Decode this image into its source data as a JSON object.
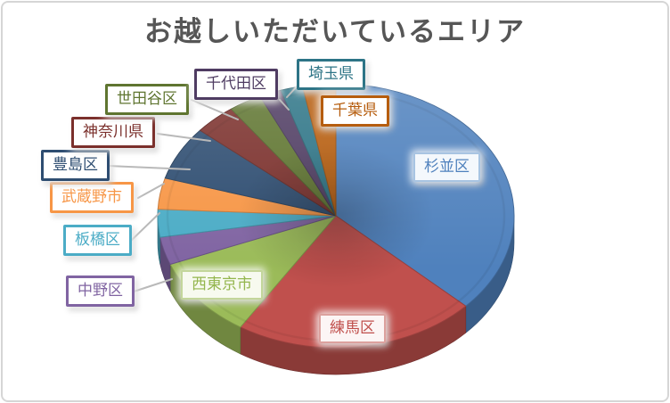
{
  "frame": {
    "background": "#FFFFFF",
    "border_color": "#D6D6D6"
  },
  "chart": {
    "title": "お越しいただいているエリア",
    "title_color": "#565656"
  },
  "chart_data": {
    "type": "pie",
    "projection": "3d",
    "start_angle_deg": 0,
    "direction": "clockwise",
    "title": "お越しいただいているエリア",
    "legend_position": "none",
    "values_are": "percent (estimated from slice angles; no numeric labels shown in image)",
    "leader_line_color": "#B9B9B9",
    "points": [
      {
        "label": "杉並区",
        "value_pct": 37,
        "color": "#4F81BD",
        "callout": {
          "text_color": "#4F81BD",
          "border_color": "#A8C4E2",
          "bg": "#F4F8FC",
          "attached_to_slice": true
        }
      },
      {
        "label": "練馬区",
        "value_pct": 22,
        "color": "#C0504D",
        "callout": {
          "text_color": "#C0504D",
          "border_color": "#DCA19E",
          "bg": "#FCF5F5",
          "attached_to_slice": true
        }
      },
      {
        "label": "西東京市",
        "value_pct": 10,
        "color": "#9BBB59",
        "callout": {
          "text_color": "#94B64E",
          "border_color": "#C3D69B",
          "bg": "#F7FAEF",
          "attached_to_slice": true
        }
      },
      {
        "label": "中野区",
        "value_pct": 3.4,
        "color": "#8064A2",
        "callout": {
          "text_color": "#8064A2",
          "border_color": "#8064A2",
          "bg": "#FFFFFF",
          "attached_to_slice": false
        }
      },
      {
        "label": "板橋区",
        "value_pct": 3.4,
        "color": "#4BACC6",
        "callout": {
          "text_color": "#4BACC6",
          "border_color": "#4BACC6",
          "bg": "#FFFFFF",
          "attached_to_slice": false
        }
      },
      {
        "label": "武蔵野市",
        "value_pct": 3.8,
        "color": "#F79646",
        "callout": {
          "text_color": "#F79646",
          "border_color": "#F79646",
          "bg": "#FFFFFF",
          "attached_to_slice": false
        }
      },
      {
        "label": "豊島区",
        "value_pct": 6.6,
        "color": "#2E4D71",
        "callout": {
          "text_color": "#2E4D71",
          "border_color": "#2E4D71",
          "bg": "#FFFFFF",
          "attached_to_slice": false
        }
      },
      {
        "label": "神奈川県",
        "value_pct": 3.8,
        "color": "#7B302C",
        "callout": {
          "text_color": "#7B302C",
          "border_color": "#7B302C",
          "bg": "#FFFFFF",
          "attached_to_slice": false
        }
      },
      {
        "label": "世田谷区",
        "value_pct": 3,
        "color": "#5F7530",
        "callout": {
          "text_color": "#5F7530",
          "border_color": "#5F7530",
          "bg": "#FFFFFF",
          "attached_to_slice": false
        }
      },
      {
        "label": "千代田区",
        "value_pct": 2,
        "color": "#4F3C62",
        "callout": {
          "text_color": "#4F3C62",
          "border_color": "#4F3C62",
          "bg": "#FFFFFF",
          "attached_to_slice": false
        }
      },
      {
        "label": "埼玉県",
        "value_pct": 2,
        "color": "#2D7486",
        "callout": {
          "text_color": "#2D7486",
          "border_color": "#2D7486",
          "bg": "#FFFFFF",
          "attached_to_slice": false
        }
      },
      {
        "label": "千葉県",
        "value_pct": 3,
        "color": "#B65D0E",
        "callout": {
          "text_color": "#B65D0E",
          "border_color": "#B65D0E",
          "bg": "#FFFFFF",
          "attached_to_slice": false
        }
      }
    ]
  }
}
